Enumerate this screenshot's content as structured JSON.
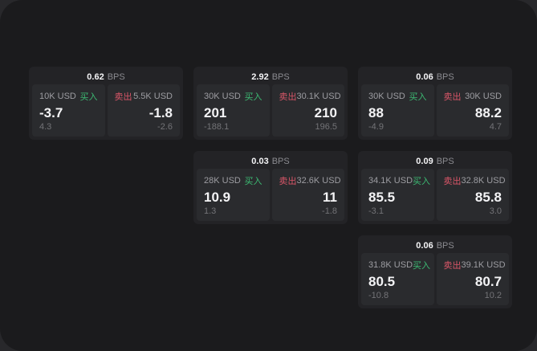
{
  "colors": {
    "outer_background": "#28282b",
    "panel_background": "#1b1b1d",
    "card_background": "#232326",
    "tile_background": "#2a2b2e",
    "buy_green": "#3cba73",
    "sell_red": "#d95668",
    "primary_text": "#f4f4f6",
    "muted_text": "#9d9da2",
    "faint_text": "#737377"
  },
  "labels": {
    "bps_unit": "BPS",
    "buy": "买入",
    "sell": "卖出"
  },
  "cards": [
    {
      "col": 1,
      "row": 1,
      "bps": "0.62",
      "buy": {
        "amount": "10K USD",
        "value": "-3.7",
        "delta": "4.3"
      },
      "sell": {
        "amount": "5.5K USD",
        "value": "-1.8",
        "delta": "-2.6"
      }
    },
    {
      "col": 2,
      "row": 1,
      "bps": "2.92",
      "buy": {
        "amount": "30K USD",
        "value": "201",
        "delta": "-188.1"
      },
      "sell": {
        "amount": "30.1K USD",
        "value": "210",
        "delta": "196.5"
      }
    },
    {
      "col": 3,
      "row": 1,
      "bps": "0.06",
      "buy": {
        "amount": "30K USD",
        "value": "88",
        "delta": "-4.9"
      },
      "sell": {
        "amount": "30K USD",
        "value": "88.2",
        "delta": "4.7"
      }
    },
    {
      "col": 2,
      "row": 2,
      "bps": "0.03",
      "buy": {
        "amount": "28K USD",
        "value": "10.9",
        "delta": "1.3"
      },
      "sell": {
        "amount": "32.6K USD",
        "value": "11",
        "delta": "-1.8"
      }
    },
    {
      "col": 3,
      "row": 2,
      "bps": "0.09",
      "buy": {
        "amount": "34.1K USD",
        "value": "85.5",
        "delta": "-3.1"
      },
      "sell": {
        "amount": "32.8K USD",
        "value": "85.8",
        "delta": "3.0"
      }
    },
    {
      "col": 3,
      "row": 3,
      "bps": "0.06",
      "buy": {
        "amount": "31.8K USD",
        "value": "80.5",
        "delta": "-10.8"
      },
      "sell": {
        "amount": "39.1K USD",
        "value": "80.7",
        "delta": "10.2"
      }
    }
  ]
}
